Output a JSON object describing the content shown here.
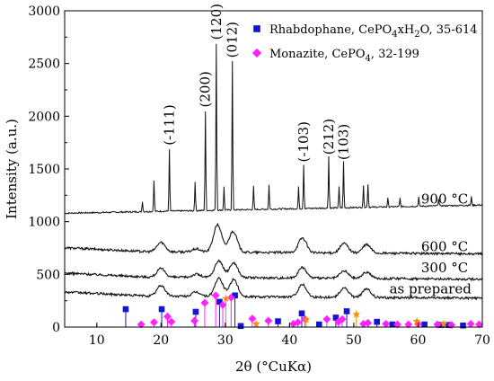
{
  "chart_data": {
    "type": "line",
    "xlabel": "2θ (°CuKα)",
    "ylabel": "Intensity (a.u.)",
    "xlim": [
      5,
      70
    ],
    "ylim": [
      0,
      3000
    ],
    "xticks": [
      10,
      20,
      30,
      40,
      50,
      60,
      70
    ],
    "yticks": [
      0,
      500,
      1000,
      1500,
      2000,
      2500,
      3000
    ],
    "grid": false,
    "legend_position": "top-right",
    "legend": [
      {
        "name": "Rhabdophane, CePO4xH2O, 35-614",
        "marker": "square",
        "color": "#1414d2"
      },
      {
        "name": "Monazite, CePO4, 32-199",
        "marker": "diamond",
        "color": "#ff22ff"
      }
    ],
    "series": [
      {
        "name": "900 °C",
        "baseline": 1080,
        "peaks": [
          {
            "x": 17.1,
            "y": 1180
          },
          {
            "x": 18.9,
            "y": 1370
          },
          {
            "x": 21.3,
            "y": 1660
          },
          {
            "x": 25.3,
            "y": 1360
          },
          {
            "x": 26.9,
            "y": 2020
          },
          {
            "x": 28.6,
            "y": 2660
          },
          {
            "x": 29.8,
            "y": 1300
          },
          {
            "x": 31.1,
            "y": 2490
          },
          {
            "x": 34.4,
            "y": 1300
          },
          {
            "x": 36.8,
            "y": 1310
          },
          {
            "x": 41.4,
            "y": 1290
          },
          {
            "x": 42.2,
            "y": 1500
          },
          {
            "x": 46.1,
            "y": 1570
          },
          {
            "x": 47.7,
            "y": 1280
          },
          {
            "x": 48.4,
            "y": 1520
          },
          {
            "x": 51.5,
            "y": 1280
          },
          {
            "x": 52.2,
            "y": 1300
          },
          {
            "x": 55.3,
            "y": 1160
          },
          {
            "x": 57.2,
            "y": 1160
          },
          {
            "x": 60.1,
            "y": 1170
          },
          {
            "x": 63.2,
            "y": 1150
          },
          {
            "x": 68.3,
            "y": 1160
          }
        ]
      },
      {
        "name": "600 °C",
        "baseline": 720,
        "peaks": [
          {
            "x": 20.0,
            "y": 810
          },
          {
            "x": 25.5,
            "y": 750
          },
          {
            "x": 28.8,
            "y": 980
          },
          {
            "x": 31.2,
            "y": 920
          },
          {
            "x": 42.0,
            "y": 860
          },
          {
            "x": 48.5,
            "y": 810
          },
          {
            "x": 52.0,
            "y": 800
          }
        ]
      },
      {
        "name": "300 °C",
        "baseline": 480,
        "peaks": [
          {
            "x": 20.0,
            "y": 560
          },
          {
            "x": 25.5,
            "y": 510
          },
          {
            "x": 29.0,
            "y": 640
          },
          {
            "x": 31.3,
            "y": 620
          },
          {
            "x": 42.0,
            "y": 580
          },
          {
            "x": 48.5,
            "y": 550
          },
          {
            "x": 52.0,
            "y": 540
          }
        ]
      },
      {
        "name": "as prepared",
        "baseline": 300,
        "peaks": [
          {
            "x": 20.0,
            "y": 400
          },
          {
            "x": 25.5,
            "y": 340
          },
          {
            "x": 29.0,
            "y": 470
          },
          {
            "x": 31.3,
            "y": 460
          },
          {
            "x": 42.0,
            "y": 420
          },
          {
            "x": 48.5,
            "y": 390
          },
          {
            "x": 52.0,
            "y": 380
          }
        ]
      }
    ],
    "reference_patterns": [
      {
        "name": "Rhabdophane, CePO4xH2O, 35-614",
        "marker": "square",
        "color": "#1414d2",
        "sticks": [
          {
            "x": 14.5,
            "y": 170
          },
          {
            "x": 20.1,
            "y": 170
          },
          {
            "x": 25.4,
            "y": 145
          },
          {
            "x": 29.1,
            "y": 240
          },
          {
            "x": 31.5,
            "y": 300
          },
          {
            "x": 32.4,
            "y": 10
          },
          {
            "x": 38.2,
            "y": 55
          },
          {
            "x": 41.9,
            "y": 130
          },
          {
            "x": 44.6,
            "y": 25
          },
          {
            "x": 47.2,
            "y": 90
          },
          {
            "x": 48.9,
            "y": 150
          },
          {
            "x": 53.6,
            "y": 50
          },
          {
            "x": 56.0,
            "y": 25
          },
          {
            "x": 61.0,
            "y": 25
          },
          {
            "x": 63.6,
            "y": 20
          },
          {
            "x": 64.7,
            "y": 20
          },
          {
            "x": 67.0,
            "y": 15
          }
        ]
      },
      {
        "name": "Monazite, CePO4, 32-199",
        "marker": "diamond",
        "color": "#ff22ff",
        "sticks": [
          {
            "x": 16.9,
            "y": 25
          },
          {
            "x": 18.9,
            "y": 45
          },
          {
            "x": 21.0,
            "y": 100
          },
          {
            "x": 21.6,
            "y": 50
          },
          {
            "x": 25.2,
            "y": 60
          },
          {
            "x": 26.8,
            "y": 230
          },
          {
            "x": 28.5,
            "y": 300
          },
          {
            "x": 29.6,
            "y": 210
          },
          {
            "x": 30.9,
            "y": 280
          },
          {
            "x": 34.2,
            "y": 80
          },
          {
            "x": 36.7,
            "y": 60
          },
          {
            "x": 40.6,
            "y": 30
          },
          {
            "x": 41.3,
            "y": 45
          },
          {
            "x": 42.4,
            "y": 75
          },
          {
            "x": 45.8,
            "y": 75
          },
          {
            "x": 47.6,
            "y": 50
          },
          {
            "x": 48.2,
            "y": 75
          },
          {
            "x": 51.5,
            "y": 30
          },
          {
            "x": 52.2,
            "y": 40
          },
          {
            "x": 55.0,
            "y": 30
          },
          {
            "x": 56.8,
            "y": 25
          },
          {
            "x": 58.5,
            "y": 25
          },
          {
            "x": 60.0,
            "y": 30
          },
          {
            "x": 63.0,
            "y": 25
          },
          {
            "x": 65.2,
            "y": 20
          },
          {
            "x": 68.2,
            "y": 30
          },
          {
            "x": 69.5,
            "y": 25
          }
        ]
      },
      {
        "name": "",
        "marker": "star",
        "color": "#ff8c00",
        "sticks": [
          {
            "x": 30.1,
            "y": 270
          },
          {
            "x": 34.8,
            "y": 30
          },
          {
            "x": 42.6,
            "y": 70
          },
          {
            "x": 50.4,
            "y": 120
          },
          {
            "x": 59.8,
            "y": 55
          },
          {
            "x": 64.0,
            "y": 30
          }
        ]
      }
    ],
    "annotations": [
      {
        "text": "(-111)",
        "x": 21.3,
        "y": 1690
      },
      {
        "text": "(200)",
        "x": 26.9,
        "y": 2050
      },
      {
        "text": "(120)",
        "x": 28.6,
        "y": 2690
      },
      {
        "text": "(012)",
        "x": 31.1,
        "y": 2520
      },
      {
        "text": "(-103)",
        "x": 42.2,
        "y": 1530
      },
      {
        "text": "(212)",
        "x": 46.1,
        "y": 1600
      },
      {
        "text": "(103)",
        "x": 48.4,
        "y": 1550
      }
    ],
    "curve_labels": [
      {
        "text": "900 °C",
        "x": 67.8,
        "y": 1170
      },
      {
        "text": "600 °C",
        "x": 67.8,
        "y": 720
      },
      {
        "text": "300 °C",
        "x": 67.8,
        "y": 520
      },
      {
        "text": "as prepared",
        "x": 68.3,
        "y": 320
      }
    ]
  }
}
